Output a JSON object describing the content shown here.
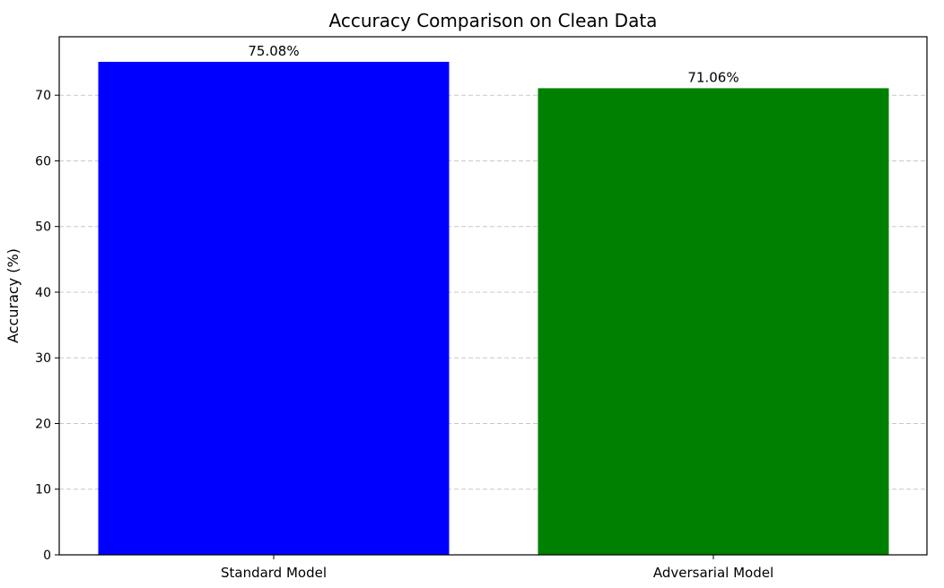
{
  "chart_data": {
    "type": "bar",
    "title": "Accuracy Comparison on Clean Data",
    "xlabel": "",
    "ylabel": "Accuracy (%)",
    "categories": [
      "Standard Model",
      "Adversarial Model"
    ],
    "values": [
      75.08,
      71.06
    ],
    "value_labels": [
      "75.08%",
      "71.06%"
    ],
    "colors": [
      "#0000ff",
      "#008000"
    ],
    "ylim": [
      0,
      78.9
    ],
    "yticks": [
      0,
      10,
      20,
      30,
      40,
      50,
      60,
      70
    ],
    "ytick_labels": [
      "0",
      "10",
      "20",
      "30",
      "40",
      "50",
      "60",
      "70"
    ],
    "grid": {
      "axis": "y",
      "style": "dashed",
      "color": "#c8c8c8"
    },
    "legend": "none"
  }
}
